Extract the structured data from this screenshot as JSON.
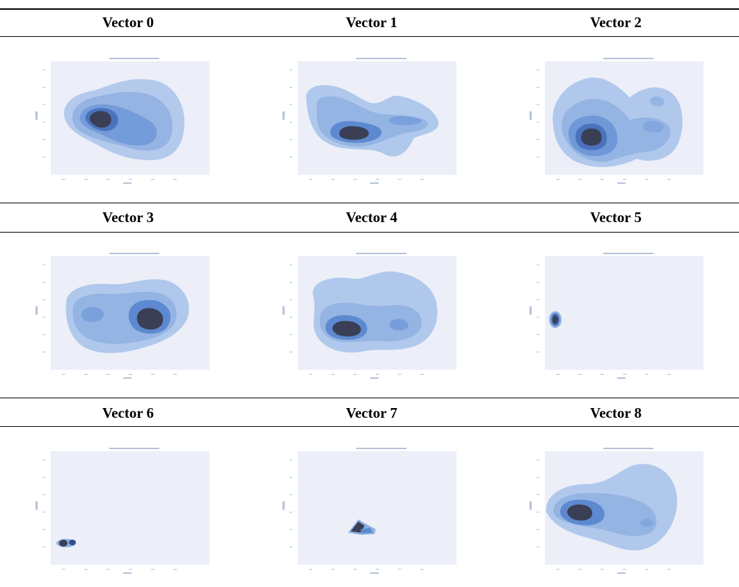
{
  "table": {
    "headers": [
      "Vector 0",
      "Vector 1",
      "Vector 2",
      "Vector 3",
      "Vector 4",
      "Vector 5",
      "Vector 6",
      "Vector 7",
      "Vector 8"
    ]
  },
  "colors": {
    "plot_background": "#eceff8",
    "density_light": "#aac3ea",
    "density_mid": "#5d89d0",
    "density_dark": "#2f4f8e",
    "density_peak": "#3a3f55"
  }
}
